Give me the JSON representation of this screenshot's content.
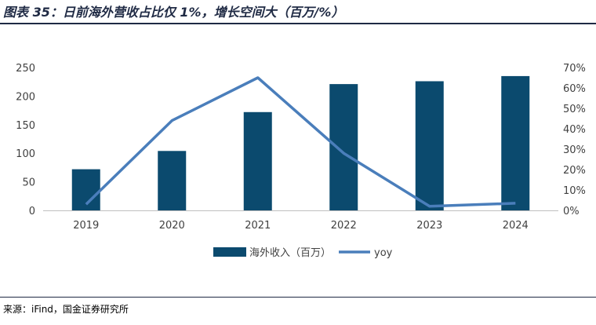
{
  "title": "图表 35：日前海外营收占比仅 1%，增长空间大（百万/%）",
  "source": "来源：iFind，国金证券研究所",
  "chart_data": {
    "type": "bar",
    "categories": [
      "2019",
      "2020",
      "2021",
      "2022",
      "2023",
      "2024"
    ],
    "series": [
      {
        "name": "海外收入（百万）",
        "type": "bar",
        "axis": "left",
        "color": "#0b4a6e",
        "values": [
          72,
          104,
          172,
          221,
          226,
          235
        ]
      },
      {
        "name": "yoy",
        "type": "line",
        "axis": "right",
        "color": "#4a7ebb",
        "values": [
          0.03,
          0.44,
          0.65,
          0.28,
          0.02,
          0.035
        ]
      }
    ],
    "ylim_left": [
      0,
      250
    ],
    "yticks_left": [
      "0",
      "50",
      "100",
      "150",
      "200",
      "250"
    ],
    "ylim_right": [
      0,
      0.7
    ],
    "yticks_right": [
      "0%",
      "10%",
      "20%",
      "30%",
      "40%",
      "50%",
      "60%",
      "70%"
    ],
    "grid": false,
    "legend_position": "bottom"
  }
}
